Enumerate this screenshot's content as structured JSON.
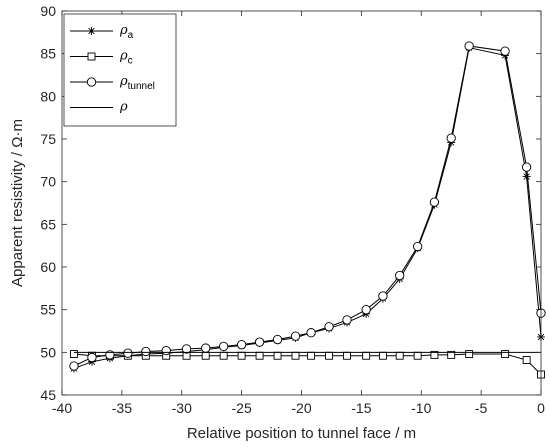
{
  "chart_data": {
    "type": "line",
    "title": "",
    "xlabel": "Relative position to tunnel face / m",
    "ylabel": "Apparent resistivity / Ω·m",
    "xlim": [
      -40,
      0
    ],
    "ylim": [
      45,
      90
    ],
    "xticks": [
      -40,
      -35,
      -30,
      -25,
      -20,
      -15,
      -10,
      -5,
      0
    ],
    "yticks": [
      45,
      50,
      55,
      60,
      65,
      70,
      75,
      80,
      85,
      90
    ],
    "grid": false,
    "legend_position": "top-left",
    "x": [
      -39,
      -37.5,
      -36,
      -34.5,
      -33,
      -31.3,
      -29.6,
      -28,
      -26.5,
      -25,
      -23.5,
      -22,
      -20.5,
      -19.2,
      -17.7,
      -16.2,
      -14.6,
      -13.2,
      -11.8,
      -10.3,
      -8.9,
      -7.5,
      -6,
      -3,
      -1.2,
      0
    ],
    "series": [
      {
        "name": "ρa",
        "name_main": "ρ",
        "name_sub": "a",
        "marker": "asterisk",
        "color": "#000000",
        "values": [
          48.1,
          48.9,
          49.3,
          49.6,
          49.8,
          49.9,
          50.1,
          50.3,
          50.6,
          50.8,
          51.1,
          51.4,
          51.7,
          52.3,
          52.8,
          53.5,
          54.5,
          56.3,
          58.6,
          62.2,
          67.3,
          74.6,
          85.7,
          84.8,
          70.6,
          51.8
        ]
      },
      {
        "name": "ρc",
        "name_main": "ρ",
        "name_sub": "c",
        "marker": "square",
        "color": "#000000",
        "values": [
          49.8,
          49.6,
          49.6,
          49.6,
          49.6,
          49.6,
          49.6,
          49.6,
          49.6,
          49.6,
          49.6,
          49.6,
          49.6,
          49.6,
          49.6,
          49.6,
          49.6,
          49.6,
          49.6,
          49.6,
          49.7,
          49.7,
          49.8,
          49.8,
          49.1,
          47.4
        ]
      },
      {
        "name": "ρtunnel",
        "name_main": "ρ",
        "name_sub": "tunnel",
        "marker": "circle",
        "color": "#000000",
        "values": [
          48.4,
          49.4,
          49.7,
          49.9,
          50.1,
          50.2,
          50.4,
          50.5,
          50.7,
          50.9,
          51.2,
          51.5,
          51.9,
          52.3,
          53.0,
          53.8,
          55.0,
          56.6,
          59.0,
          62.4,
          67.6,
          75.1,
          85.9,
          85.3,
          71.7,
          54.6
        ]
      },
      {
        "name": "ρ",
        "name_main": "ρ",
        "name_sub": "",
        "marker": "none",
        "color": "#000000",
        "values": [
          50,
          50,
          50,
          50,
          50,
          50,
          50,
          50,
          50,
          50,
          50,
          50,
          50,
          50,
          50,
          50,
          50,
          50,
          50,
          50,
          50,
          50,
          50,
          50,
          50,
          50
        ]
      }
    ]
  }
}
